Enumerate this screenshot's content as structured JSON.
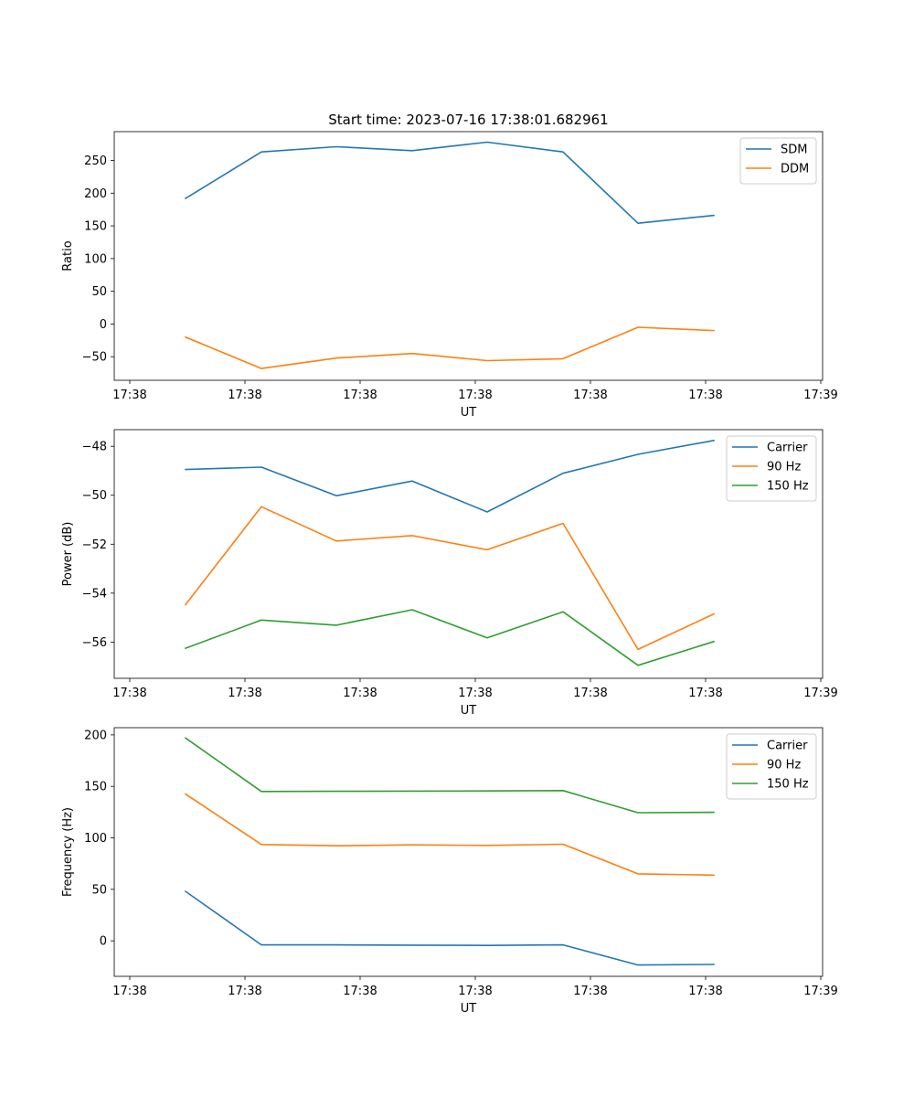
{
  "figure_title": "Start time: 2023-07-16 17:38:01.682961",
  "colors": {
    "series1": "#1f77b4",
    "series2": "#ff7f0e",
    "series3": "#2ca02c"
  },
  "chart_data": [
    {
      "type": "line",
      "id": "ratio",
      "title": "Start time: 2023-07-16 17:38:01.682961",
      "xlabel": "UT",
      "ylabel": "Ratio",
      "x_tick_labels": [
        "17:38",
        "17:38",
        "17:38",
        "17:38",
        "17:38",
        "17:38",
        "17:38"
      ],
      "x_last_tick_label": "17:39",
      "yticks": [
        -50,
        0,
        50,
        100,
        150,
        200,
        250
      ],
      "ylim": [
        -86,
        294
      ],
      "legend_position": "upper right",
      "series": [
        {
          "name": "SDM",
          "color": "#1f77b4",
          "values": [
            192,
            263,
            271,
            265,
            278,
            263,
            154,
            166
          ]
        },
        {
          "name": "DDM",
          "color": "#ff7f0e",
          "values": [
            -20,
            -68,
            -52,
            -45,
            -56,
            -53,
            -5,
            -10
          ]
        }
      ]
    },
    {
      "type": "line",
      "id": "power",
      "xlabel": "UT",
      "ylabel": "Power (dB)",
      "x_tick_labels": [
        "17:38",
        "17:38",
        "17:38",
        "17:38",
        "17:38",
        "17:38",
        "17:38"
      ],
      "x_last_tick_label": "17:39",
      "yticks": [
        -56,
        -54,
        -52,
        -50,
        -48
      ],
      "ylim": [
        -57.48,
        -47.32
      ],
      "legend_position": "upper right",
      "series": [
        {
          "name": "Carrier",
          "color": "#1f77b4",
          "values": [
            -48.95,
            -48.85,
            -50.02,
            -49.42,
            -50.68,
            -49.1,
            -48.33,
            -47.76
          ]
        },
        {
          "name": "90 Hz",
          "color": "#ff7f0e",
          "values": [
            -54.47,
            -50.47,
            -51.87,
            -51.65,
            -52.23,
            -51.15,
            -56.3,
            -54.85
          ]
        },
        {
          "name": "150 Hz",
          "color": "#2ca02c",
          "values": [
            -56.25,
            -55.1,
            -55.31,
            -54.68,
            -55.83,
            -54.76,
            -56.95,
            -55.98
          ]
        }
      ]
    },
    {
      "type": "line",
      "id": "frequency",
      "xlabel": "UT",
      "ylabel": "Frequency (Hz)",
      "x_tick_labels": [
        "17:38",
        "17:38",
        "17:38",
        "17:38",
        "17:38",
        "17:38",
        "17:38"
      ],
      "x_last_tick_label": "17:39",
      "yticks": [
        0,
        50,
        100,
        150,
        200
      ],
      "ylim": [
        -34.5,
        207
      ],
      "legend_position": "upper right",
      "series": [
        {
          "name": "Carrier",
          "color": "#1f77b4",
          "values": [
            48,
            -4,
            -4,
            -4.2,
            -4.5,
            -4,
            -23.5,
            -23
          ]
        },
        {
          "name": "90 Hz",
          "color": "#ff7f0e",
          "values": [
            142.5,
            93.5,
            92.3,
            93.2,
            92.6,
            93.8,
            65,
            63.8
          ]
        },
        {
          "name": "150 Hz",
          "color": "#2ca02c",
          "values": [
            197,
            145,
            145.2,
            145.4,
            145.6,
            145.9,
            124.4,
            124.8
          ]
        }
      ]
    }
  ]
}
